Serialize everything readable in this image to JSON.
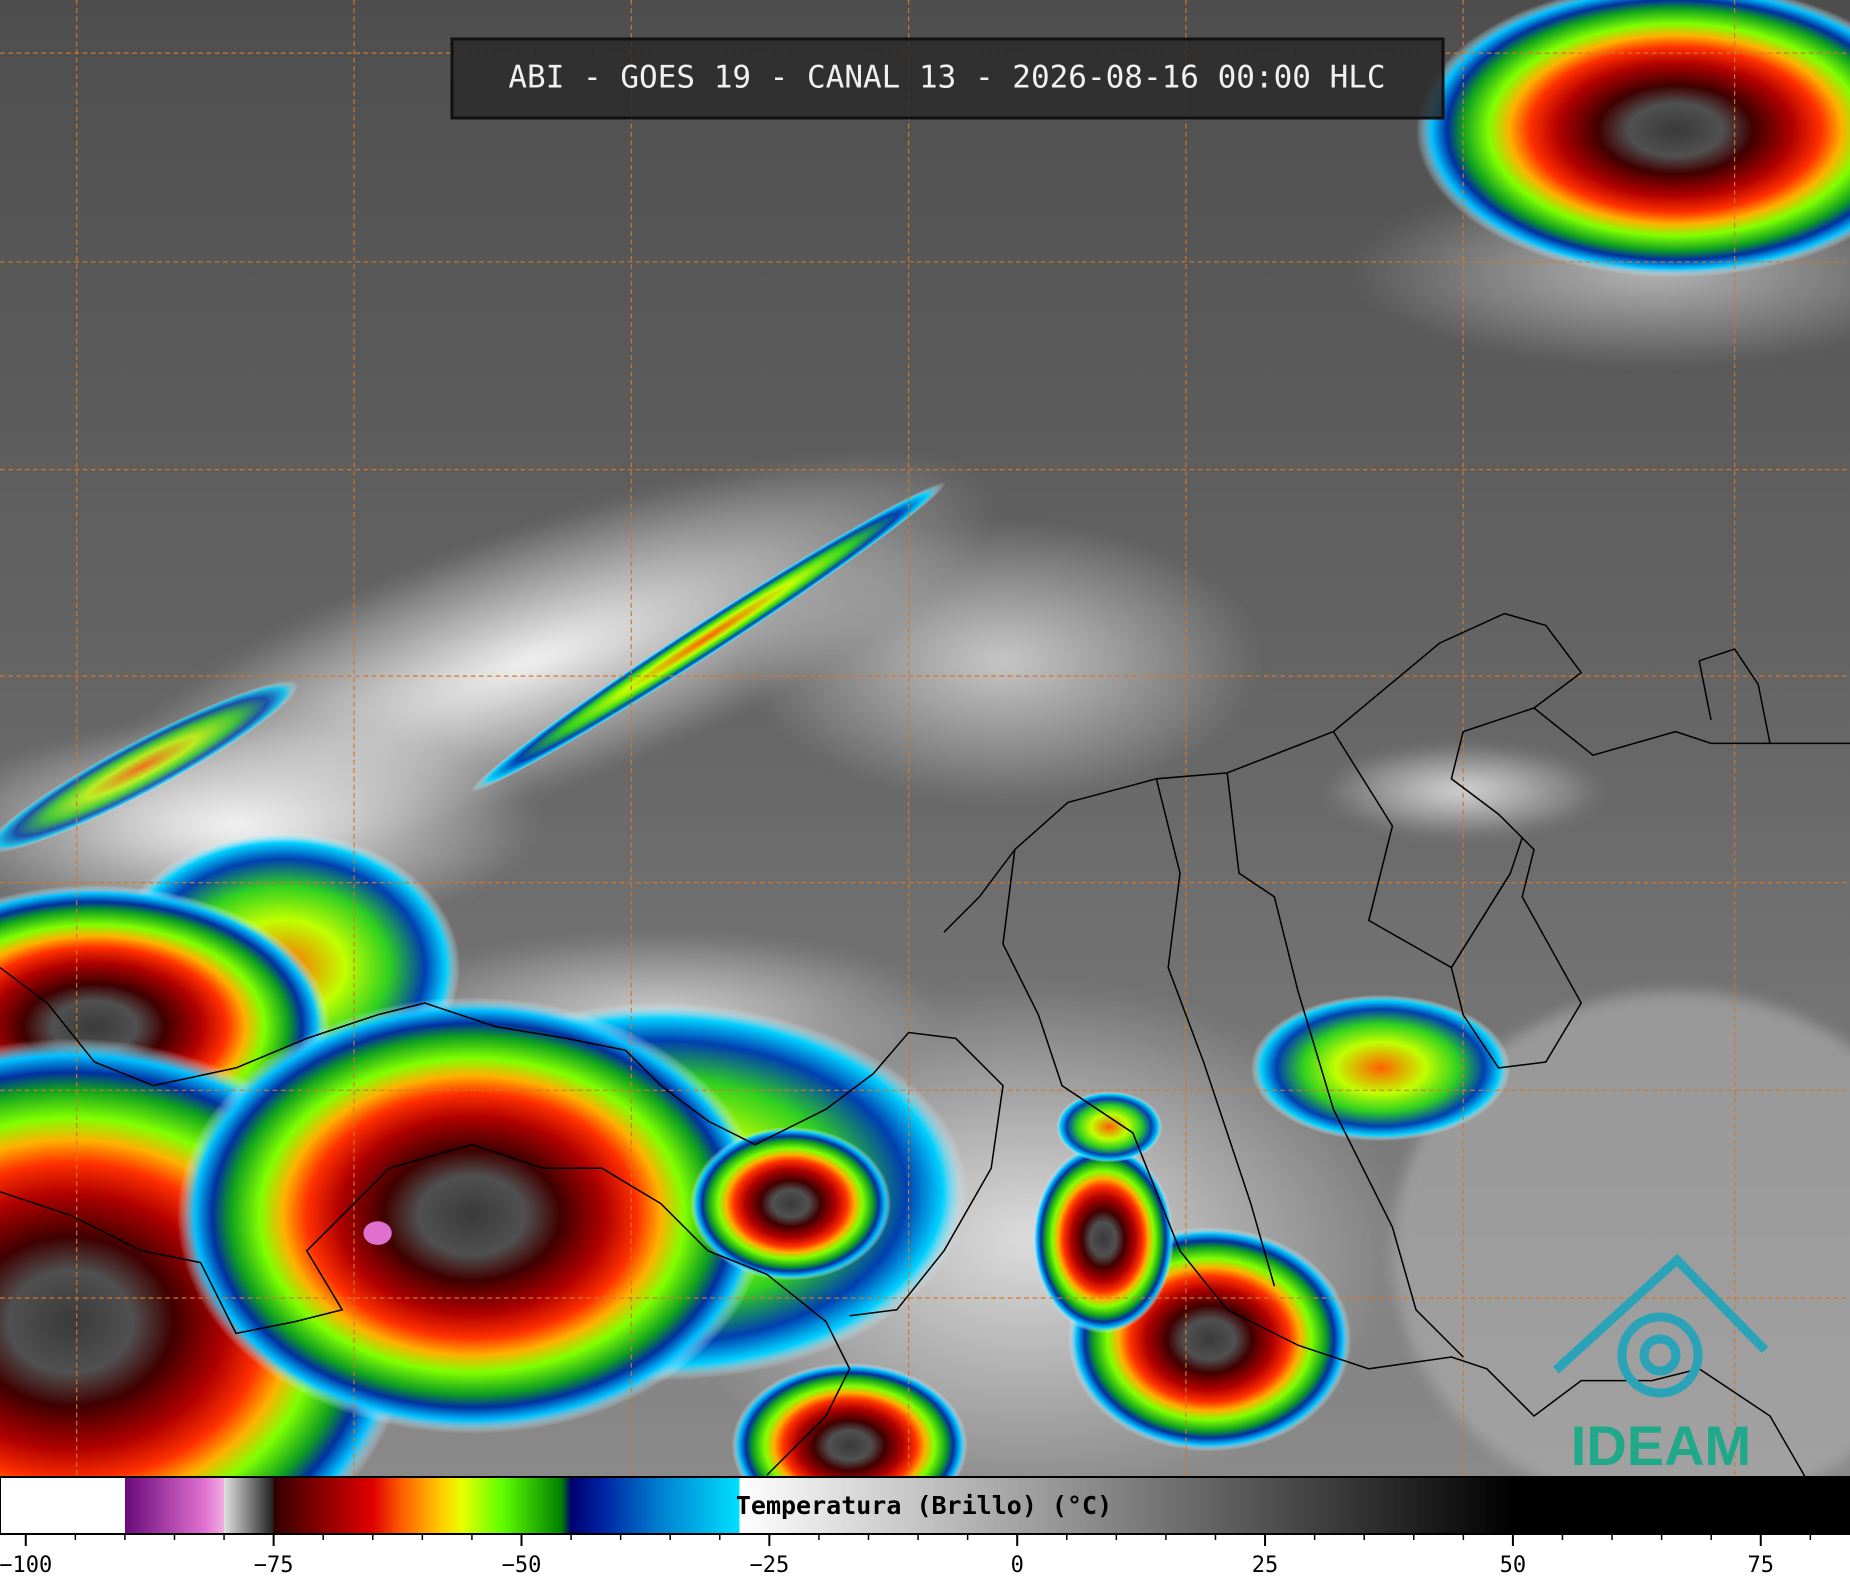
{
  "title": "ABI - GOES 19 - CANAL 13 - 2026-08-16 00:00 HLC",
  "logo": "IDEAM",
  "colorbar": {
    "label": "Temperatura (Brillo) (°C)",
    "range": [
      -102.6,
      84
    ],
    "ticks": [
      {
        "value": -100,
        "label": "−100"
      },
      {
        "value": -75,
        "label": "−75"
      },
      {
        "value": -50,
        "label": "−50"
      },
      {
        "value": -25,
        "label": "−25"
      },
      0,
      25,
      50,
      75
    ],
    "minor_ticks": [
      -95,
      -90,
      -85,
      -80,
      -70,
      -65,
      -60,
      -55,
      -45,
      -40,
      -35,
      -30,
      -20,
      -15,
      -10,
      -5,
      5,
      10,
      15,
      20,
      30,
      35,
      40,
      45,
      55,
      60,
      65,
      70,
      80
    ],
    "stops": [
      {
        "value": -102.6,
        "color": "#ffffff"
      },
      {
        "value": -90,
        "color": "#ffffff"
      },
      {
        "value": -90,
        "color": "#6a0a7a"
      },
      {
        "value": -82,
        "color": "#e070d0"
      },
      {
        "value": -80,
        "color": "#f0b0e0"
      },
      {
        "value": -80,
        "color": "#e0e0e0"
      },
      {
        "value": -75,
        "color": "#202020"
      },
      {
        "value": -75,
        "color": "#300000"
      },
      {
        "value": -70,
        "color": "#8b0000"
      },
      {
        "value": -65,
        "color": "#e00000"
      },
      {
        "value": -62,
        "color": "#ff6000"
      },
      {
        "value": -58,
        "color": "#ffd000"
      },
      {
        "value": -56,
        "color": "#e8ff00"
      },
      {
        "value": -52,
        "color": "#60ff00"
      },
      {
        "value": -46,
        "color": "#008000"
      },
      {
        "value": -45,
        "color": "#000070"
      },
      {
        "value": -42,
        "color": "#0020a0"
      },
      {
        "value": -36,
        "color": "#0080d0"
      },
      {
        "value": -28,
        "color": "#00e0ff"
      },
      {
        "value": -28,
        "color": "#ffffff"
      },
      {
        "value": 50,
        "color": "#000000"
      },
      {
        "value": 84,
        "color": "#000000"
      }
    ]
  }
}
